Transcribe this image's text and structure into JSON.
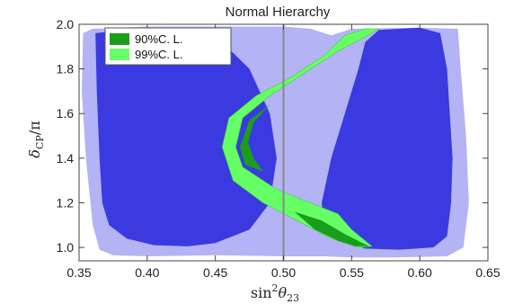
{
  "chart_data": {
    "type": "contour",
    "title": "Normal Hierarchy",
    "xlabel": {
      "base": "sin",
      "sup": "2",
      "sym": "θ",
      "sub": "23"
    },
    "ylabel": {
      "sym": "δ",
      "sub": "CP",
      "tail": "/π"
    },
    "xlim": [
      0.35,
      0.65
    ],
    "ylim": [
      0.94,
      2.0
    ],
    "xticks": [
      0.35,
      0.4,
      0.45,
      0.5,
      0.55,
      0.6,
      0.65
    ],
    "xtick_labels": [
      "0.35",
      "0.40",
      "0.45",
      "0.50",
      "0.55",
      "0.60",
      "0.65"
    ],
    "yticks": [
      1.0,
      1.2,
      1.4,
      1.6,
      1.8,
      2.0
    ],
    "ytick_labels": [
      "1.0",
      "1.2",
      "1.4",
      "1.6",
      "1.8",
      "2.0"
    ],
    "reference_line_x": 0.5,
    "legend": {
      "position": "top-left",
      "entries": [
        {
          "label": "90%C. L.",
          "color": "#1a9e1a"
        },
        {
          "label": "99%C. L.",
          "color": "#66ff66"
        }
      ]
    },
    "colors": {
      "outer_region": "#b3b3f5",
      "inner_region": "#3a3ae0",
      "band_99": "#66ff66",
      "band_90": "#1a9e1a",
      "reference_line": "#888888"
    },
    "regions": [
      {
        "kind": "outer",
        "points": [
          [
            0.353,
            1.96
          ],
          [
            0.36,
            1.98
          ],
          [
            0.4,
            1.99
          ],
          [
            0.45,
            1.99
          ],
          [
            0.5,
            1.99
          ],
          [
            0.52,
            1.98
          ],
          [
            0.535,
            1.95
          ],
          [
            0.55,
            1.98
          ],
          [
            0.6,
            1.985
          ],
          [
            0.628,
            1.98
          ],
          [
            0.63,
            1.8
          ],
          [
            0.634,
            1.5
          ],
          [
            0.636,
            1.2
          ],
          [
            0.632,
            1.0
          ],
          [
            0.62,
            0.96
          ],
          [
            0.58,
            0.955
          ],
          [
            0.55,
            0.955
          ],
          [
            0.53,
            0.96
          ],
          [
            0.5,
            0.96
          ],
          [
            0.45,
            0.965
          ],
          [
            0.4,
            0.96
          ],
          [
            0.375,
            0.965
          ],
          [
            0.365,
            0.99
          ],
          [
            0.36,
            1.1
          ],
          [
            0.355,
            1.4
          ],
          [
            0.352,
            1.7
          ]
        ]
      },
      {
        "kind": "inner",
        "points": [
          [
            0.362,
            1.96
          ],
          [
            0.4,
            1.985
          ],
          [
            0.43,
            1.975
          ],
          [
            0.455,
            1.92
          ],
          [
            0.475,
            1.8
          ],
          [
            0.49,
            1.6
          ],
          [
            0.495,
            1.4
          ],
          [
            0.49,
            1.2
          ],
          [
            0.475,
            1.08
          ],
          [
            0.45,
            1.02
          ],
          [
            0.43,
            1.005
          ],
          [
            0.405,
            1.01
          ],
          [
            0.385,
            1.04
          ],
          [
            0.372,
            1.1
          ],
          [
            0.367,
            1.2
          ],
          [
            0.365,
            1.4
          ],
          [
            0.363,
            1.7
          ]
        ]
      },
      {
        "kind": "inner",
        "points": [
          [
            0.57,
            1.975
          ],
          [
            0.6,
            1.985
          ],
          [
            0.615,
            1.96
          ],
          [
            0.62,
            1.8
          ],
          [
            0.622,
            1.6
          ],
          [
            0.624,
            1.4
          ],
          [
            0.623,
            1.2
          ],
          [
            0.62,
            1.05
          ],
          [
            0.61,
            1.0
          ],
          [
            0.585,
            0.99
          ],
          [
            0.56,
            0.995
          ],
          [
            0.54,
            1.03
          ],
          [
            0.53,
            1.1
          ],
          [
            0.528,
            1.2
          ],
          [
            0.535,
            1.4
          ],
          [
            0.545,
            1.6
          ],
          [
            0.555,
            1.8
          ],
          [
            0.56,
            1.92
          ]
        ]
      }
    ],
    "bands": [
      {
        "kind": "99",
        "points": [
          [
            0.545,
            1.95
          ],
          [
            0.56,
            1.98
          ],
          [
            0.57,
            1.98
          ],
          [
            0.562,
            1.95
          ],
          [
            0.54,
            1.88
          ],
          [
            0.515,
            1.78
          ],
          [
            0.49,
            1.68
          ],
          [
            0.47,
            1.58
          ],
          [
            0.465,
            1.45
          ],
          [
            0.47,
            1.36
          ],
          [
            0.495,
            1.26
          ],
          [
            0.54,
            1.15
          ],
          [
            0.55,
            1.08
          ],
          [
            0.565,
            1.005
          ],
          [
            0.555,
            1.0
          ],
          [
            0.535,
            1.04
          ],
          [
            0.51,
            1.12
          ],
          [
            0.485,
            1.2
          ],
          [
            0.463,
            1.3
          ],
          [
            0.455,
            1.45
          ],
          [
            0.46,
            1.58
          ],
          [
            0.48,
            1.68
          ],
          [
            0.505,
            1.76
          ],
          [
            0.53,
            1.86
          ]
        ]
      },
      {
        "kind": "90",
        "points": [
          [
            0.49,
            1.64
          ],
          [
            0.475,
            1.57
          ],
          [
            0.468,
            1.45
          ],
          [
            0.472,
            1.37
          ],
          [
            0.485,
            1.34
          ],
          [
            0.478,
            1.4
          ],
          [
            0.474,
            1.47
          ],
          [
            0.478,
            1.56
          ]
        ]
      },
      {
        "kind": "90",
        "points": [
          [
            0.508,
            1.16
          ],
          [
            0.528,
            1.12
          ],
          [
            0.545,
            1.06
          ],
          [
            0.558,
            1.02
          ],
          [
            0.563,
            1.005
          ],
          [
            0.553,
            1.005
          ],
          [
            0.54,
            1.03
          ],
          [
            0.523,
            1.08
          ]
        ]
      }
    ]
  }
}
